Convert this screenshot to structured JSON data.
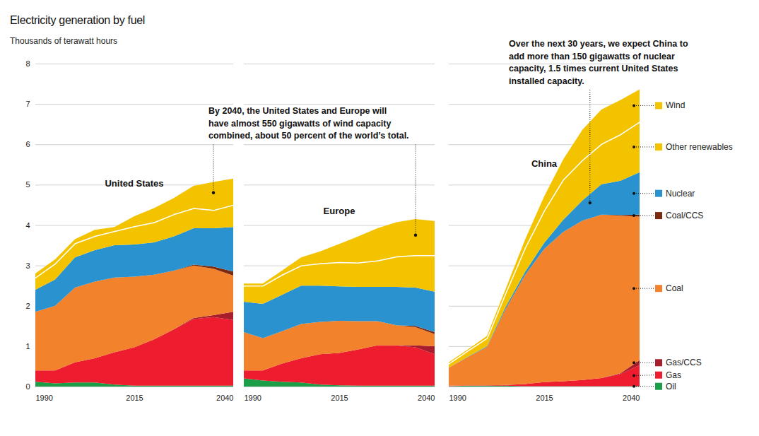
{
  "chart_data": {
    "type": "area",
    "title": "Electricity generation by fuel",
    "subtitle": "Thousands of terawatt hours",
    "stacked": true,
    "grid": true,
    "legend": "right",
    "x": [
      1990,
      1995,
      2000,
      2005,
      2010,
      2015,
      2020,
      2025,
      2030,
      2035,
      2040
    ],
    "xlim": [
      1990,
      2040
    ],
    "xticks": [
      1990,
      2015,
      2040
    ],
    "ylim": [
      0,
      8
    ],
    "yticks": [
      0,
      1,
      2,
      3,
      4,
      5,
      6,
      7,
      8
    ],
    "panels": [
      {
        "title": "United States",
        "series": [
          {
            "name": "Oil",
            "color": "#1a9e48",
            "values": [
              0.12,
              0.08,
              0.1,
              0.1,
              0.05,
              0.02,
              0.02,
              0.02,
              0.02,
              0.02,
              0.02
            ]
          },
          {
            "name": "Gas",
            "color": "#ed1c2e",
            "values": [
              0.28,
              0.32,
              0.5,
              0.6,
              0.8,
              0.95,
              1.15,
              1.4,
              1.65,
              1.7,
              1.63
            ]
          },
          {
            "name": "Gas/CCS",
            "color": "#a81d2c",
            "values": [
              0,
              0,
              0,
              0,
              0,
              0,
              0,
              0,
              0.03,
              0.05,
              0.2
            ]
          },
          {
            "name": "Coal",
            "color": "#f2822b",
            "values": [
              1.45,
              1.6,
              1.85,
              1.9,
              1.85,
              1.75,
              1.6,
              1.45,
              1.3,
              1.15,
              0.9
            ]
          },
          {
            "name": "Coal/CCS",
            "color": "#7b2a10",
            "values": [
              0,
              0,
              0,
              0,
              0,
              0,
              0,
              0,
              0.02,
              0.05,
              0.1
            ]
          },
          {
            "name": "Nuclear",
            "color": "#2a93cf",
            "values": [
              0.55,
              0.65,
              0.75,
              0.78,
              0.8,
              0.8,
              0.8,
              0.85,
              0.9,
              0.95,
              1.1
            ]
          },
          {
            "name": "Other renewables",
            "color": "#f4c300",
            "values": [
              0.3,
              0.4,
              0.35,
              0.35,
              0.35,
              0.45,
              0.5,
              0.55,
              0.5,
              0.45,
              0.55
            ]
          },
          {
            "name": "Wind",
            "color": "#f4c300",
            "values": [
              0.1,
              0.1,
              0.1,
              0.15,
              0.1,
              0.25,
              0.35,
              0.4,
              0.55,
              0.7,
              0.65
            ]
          }
        ]
      },
      {
        "title": "Europe",
        "series": [
          {
            "name": "Oil",
            "color": "#1a9e48",
            "values": [
              0.2,
              0.15,
              0.12,
              0.1,
              0.05,
              0.03,
              0.02,
              0.02,
              0.02,
              0.02,
              0.02
            ]
          },
          {
            "name": "Gas",
            "color": "#ed1c2e",
            "values": [
              0.2,
              0.25,
              0.45,
              0.6,
              0.75,
              0.8,
              0.9,
              1.0,
              1.0,
              0.95,
              0.78
            ]
          },
          {
            "name": "Gas/CCS",
            "color": "#a81d2c",
            "values": [
              0,
              0,
              0,
              0,
              0,
              0,
              0,
              0,
              0,
              0.05,
              0.2
            ]
          },
          {
            "name": "Coal",
            "color": "#f2822b",
            "values": [
              0.95,
              0.8,
              0.8,
              0.85,
              0.8,
              0.8,
              0.7,
              0.6,
              0.5,
              0.45,
              0.3
            ]
          },
          {
            "name": "Coal/CCS",
            "color": "#7b2a10",
            "values": [
              0,
              0,
              0,
              0,
              0,
              0,
              0,
              0,
              0,
              0.03,
              0.05
            ]
          },
          {
            "name": "Nuclear",
            "color": "#2a93cf",
            "values": [
              0.75,
              0.85,
              0.9,
              0.95,
              0.9,
              0.85,
              0.85,
              0.85,
              0.95,
              0.95,
              1.0
            ]
          },
          {
            "name": "Other renewables",
            "color": "#f4c300",
            "values": [
              0.4,
              0.45,
              0.5,
              0.5,
              0.55,
              0.6,
              0.6,
              0.65,
              0.75,
              0.8,
              0.9
            ]
          },
          {
            "name": "Wind",
            "color": "#f4c300",
            "values": [
              0.05,
              0.05,
              0.1,
              0.2,
              0.3,
              0.45,
              0.65,
              0.8,
              0.85,
              0.9,
              0.85
            ]
          }
        ]
      },
      {
        "title": "China",
        "series": [
          {
            "name": "Oil",
            "color": "#1a9e48",
            "values": [
              0.01,
              0.02,
              0.02,
              0.02,
              0.01,
              0.01,
              0.01,
              0.01,
              0.01,
              0.01,
              0.01
            ]
          },
          {
            "name": "Gas",
            "color": "#ed1c2e",
            "values": [
              0.01,
              0.01,
              0.01,
              0.02,
              0.05,
              0.1,
              0.12,
              0.15,
              0.2,
              0.3,
              0.52
            ]
          },
          {
            "name": "Gas/CCS",
            "color": "#a81d2c",
            "values": [
              0,
              0,
              0,
              0,
              0,
              0,
              0,
              0,
              0,
              0.02,
              0.12
            ]
          },
          {
            "name": "Coal",
            "color": "#f2822b",
            "values": [
              0.45,
              0.7,
              0.95,
              1.9,
              2.7,
              3.3,
              3.7,
              3.95,
              4.05,
              3.9,
              3.56
            ]
          },
          {
            "name": "Coal/CCS",
            "color": "#7b2a10",
            "values": [
              0,
              0,
              0,
              0,
              0,
              0,
              0,
              0,
              0,
              0.02,
              0.05
            ]
          },
          {
            "name": "Nuclear",
            "color": "#2a93cf",
            "values": [
              0,
              0.01,
              0.02,
              0.05,
              0.08,
              0.15,
              0.3,
              0.5,
              0.75,
              0.85,
              1.05
            ]
          },
          {
            "name": "Other renewables",
            "color": "#f4c300",
            "values": [
              0.1,
              0.15,
              0.2,
              0.35,
              0.6,
              0.8,
              1.0,
              1.0,
              1.0,
              1.15,
              1.25
            ]
          },
          {
            "name": "Wind",
            "color": "#f4c300",
            "values": [
              0.03,
              0.03,
              0.05,
              0.1,
              0.2,
              0.35,
              0.5,
              0.75,
              0.85,
              0.85,
              0.8
            ]
          }
        ]
      }
    ],
    "annotations": [
      {
        "text": "By 2040, the United States and Europe will\nhave almost 550 gigawatts of wind capacity\ncombined, about 50 percent of the world’s total.",
        "points": [
          {
            "panel": "United States",
            "x": 2035,
            "y": 4.8
          },
          {
            "panel": "Europe",
            "x": 2035,
            "y": 3.75
          }
        ]
      },
      {
        "text": "Over the next 30 years, we expect China to\nadd more than 150 gigawatts of nuclear\ncapacity, 1.5 times current United States\ninstalled capacity.",
        "points": [
          {
            "panel": "China",
            "x": 2027,
            "y": 4.55
          }
        ]
      }
    ]
  }
}
